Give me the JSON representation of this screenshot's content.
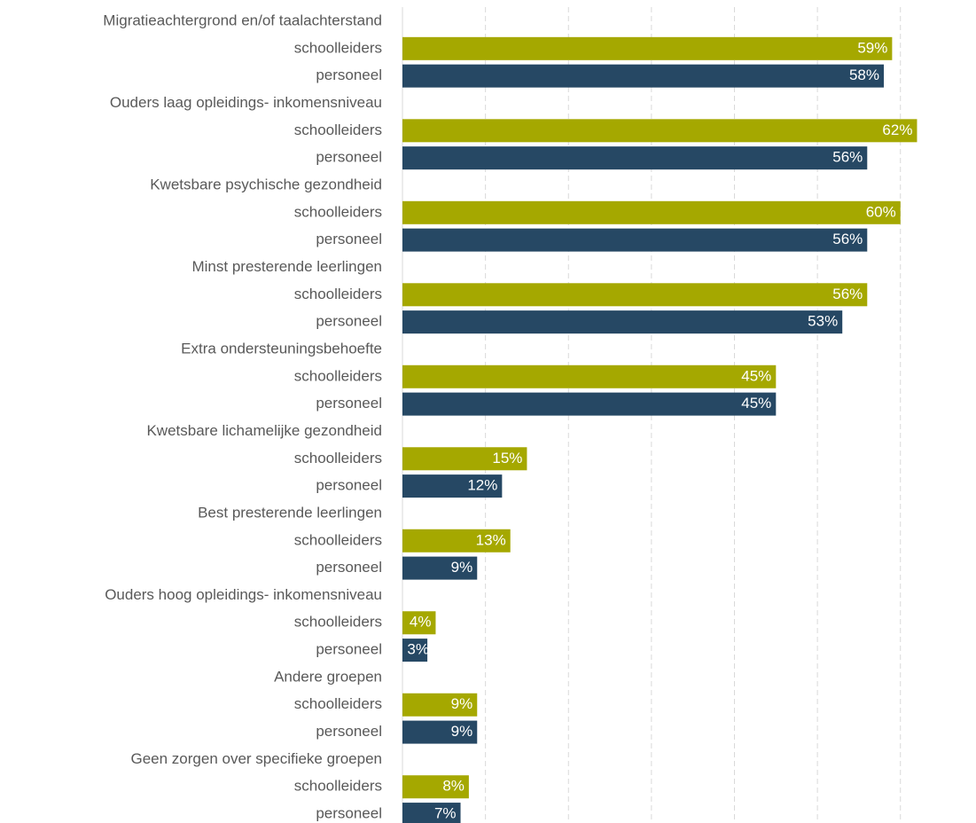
{
  "chart_data": {
    "type": "bar",
    "orientation": "horizontal",
    "categories": [
      "Migratieachtergrond en/of taalachterstand",
      "Ouders laag opleidings- inkomensniveau",
      "Kwetsbare psychische gezondheid",
      "Minst presterende leerlingen",
      "Extra ondersteuningsbehoefte",
      "Kwetsbare lichamelijke gezondheid",
      "Best presterende leerlingen",
      "Ouders hoog opleidings- inkomensniveau",
      "Andere groepen",
      "Geen zorgen over specifieke groepen"
    ],
    "series": [
      {
        "name": "schoolleiders",
        "color": "#a5a800",
        "values": [
          59,
          62,
          60,
          56,
          45,
          15,
          13,
          4,
          9,
          8
        ],
        "value_labels": [
          "59%",
          "62%",
          "60%",
          "56%",
          "45%",
          "15%",
          "13%",
          "4%",
          "9%",
          "8%"
        ]
      },
      {
        "name": "personeel",
        "color": "#264864",
        "values": [
          58,
          56,
          56,
          53,
          45,
          12,
          9,
          3,
          9,
          7
        ],
        "value_labels": [
          "58%",
          "56%",
          "56%",
          "53%",
          "45%",
          "12%",
          "9%",
          "3%",
          "9%",
          "7%"
        ]
      }
    ],
    "xlim": [
      0,
      69
    ],
    "xticks": [
      0,
      10,
      20,
      30,
      40,
      50,
      60
    ],
    "grid": true
  }
}
